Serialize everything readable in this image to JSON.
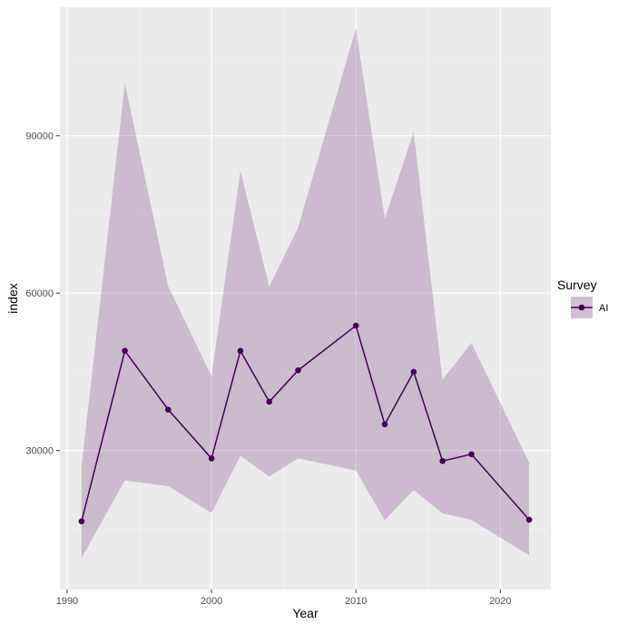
{
  "chart_data": {
    "type": "line",
    "xlabel": "Year",
    "ylabel": "index",
    "xlim": [
      1989.5,
      2023.5
    ],
    "ylim": [
      3500,
      114500
    ],
    "x_ticks": [
      1990,
      2000,
      2010,
      2020
    ],
    "x_minor_ticks": [
      1995,
      2005,
      2015
    ],
    "y_ticks": [
      30000,
      60000,
      90000
    ],
    "y_minor_ticks": [
      15000,
      45000,
      75000,
      105000
    ],
    "grid": true,
    "legend": {
      "title": "Survey",
      "position": "right"
    },
    "series": [
      {
        "name": "AI",
        "color": "#440154",
        "ribbon_color": "#440154",
        "ribbon_opacity": 0.2,
        "x": [
          1991,
          1994,
          1997,
          2000,
          2002,
          2004,
          2006,
          2010,
          2012,
          2014,
          2016,
          2018,
          2022
        ],
        "y": [
          16500,
          49000,
          37800,
          28500,
          49000,
          39300,
          45300,
          53800,
          35000,
          45000,
          28000,
          29300,
          16800
        ],
        "lower": [
          9500,
          24300,
          23200,
          18100,
          29000,
          25000,
          28500,
          26200,
          16700,
          22500,
          18000,
          16800,
          10000
        ],
        "upper": [
          27000,
          100000,
          61300,
          44200,
          83300,
          61300,
          72500,
          110500,
          74200,
          90800,
          43500,
          50500,
          27700
        ]
      }
    ]
  }
}
